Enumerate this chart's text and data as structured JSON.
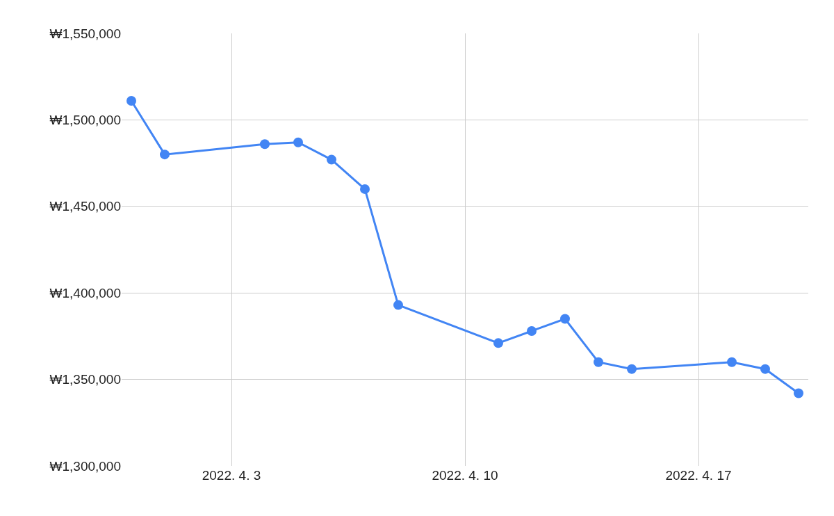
{
  "chart_data": {
    "type": "line",
    "x": [
      "2022-03-31",
      "2022-04-01",
      "2022-04-04",
      "2022-04-05",
      "2022-04-06",
      "2022-04-07",
      "2022-04-08",
      "2022-04-11",
      "2022-04-12",
      "2022-04-13",
      "2022-04-14",
      "2022-04-15",
      "2022-04-18",
      "2022-04-19",
      "2022-04-20"
    ],
    "series": [
      {
        "color": "#4285f4",
        "values": [
          1511000,
          1480000,
          1486000,
          1487000,
          1477000,
          1460000,
          1393000,
          1371000,
          1378000,
          1385000,
          1360000,
          1356000,
          1360000,
          1356000,
          1342000
        ]
      }
    ],
    "xlim": [
      "2022-03-30T17:00",
      "2022-04-20T07:00"
    ],
    "xticks": [
      {
        "value": "2022-04-03",
        "label": "2022. 4. 3"
      },
      {
        "value": "2022-04-10",
        "label": "2022. 4. 10"
      },
      {
        "value": "2022-04-17",
        "label": "2022. 4. 17"
      }
    ],
    "ylim": [
      1300000,
      1550000
    ],
    "yticks": [
      {
        "value": 1300000,
        "label": "₩1,300,000"
      },
      {
        "value": 1350000,
        "label": "₩1,350,000"
      },
      {
        "value": 1400000,
        "label": "₩1,400,000"
      },
      {
        "value": 1450000,
        "label": "₩1,450,000"
      },
      {
        "value": 1500000,
        "label": "₩1,500,000"
      },
      {
        "value": 1550000,
        "label": "₩1,550,000"
      }
    ],
    "grid": true,
    "marker": "circle",
    "line_style": "solid"
  }
}
